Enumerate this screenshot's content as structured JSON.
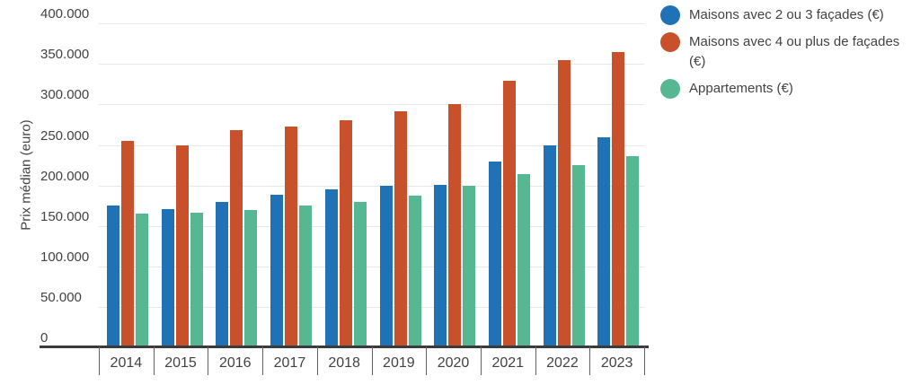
{
  "chart_data": {
    "type": "bar",
    "title": "",
    "ylabel": "Prix médian (euro)",
    "categories": [
      "2014",
      "2015",
      "2016",
      "2017",
      "2018",
      "2019",
      "2020",
      "2021",
      "2022",
      "2023"
    ],
    "series": [
      {
        "name": "Maisons avec 2 ou 3 façades (€)",
        "color": "#1F72B5",
        "values": [
          175000,
          171000,
          180000,
          188000,
          195000,
          200000,
          201000,
          230000,
          250000,
          259000
        ]
      },
      {
        "name": "Maisons avec 4 ou plus de façades (€)",
        "color": "#C8502B",
        "values": [
          255000,
          250000,
          268000,
          273000,
          280000,
          292000,
          300000,
          329000,
          355000,
          365000
        ]
      },
      {
        "name": "Appartements (€)",
        "color": "#55B893",
        "values": [
          165000,
          166000,
          170000,
          175000,
          180000,
          187000,
          200000,
          214000,
          225000,
          236000
        ]
      }
    ],
    "ylim": [
      0,
      400000
    ],
    "ytick_step": 50000,
    "ytick_labels": [
      "0",
      "50.000",
      "100.000",
      "150.000",
      "200.000",
      "250.000",
      "300.000",
      "350.000",
      "400.000"
    ],
    "grid": true,
    "legend_position": "right",
    "colors": {
      "grid": "#e7e7e7",
      "axis": "#3b3b3b",
      "tick": "#616161",
      "text": "#424242"
    }
  }
}
